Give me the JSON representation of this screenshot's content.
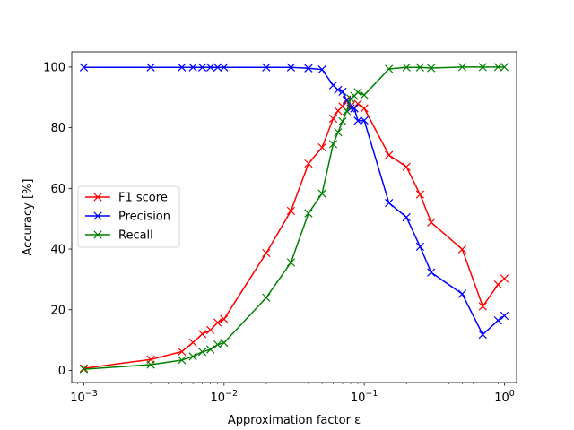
{
  "chart_data": {
    "type": "line",
    "xscale": "log",
    "xlabel": "Approximation factor ε",
    "ylabel": "Accuracy [%]",
    "xlim": [
      0.00082,
      1.22
    ],
    "ylim": [
      -4,
      105
    ],
    "xticks": [
      {
        "value": 0.001,
        "base": "10",
        "exp": "−3"
      },
      {
        "value": 0.01,
        "base": "10",
        "exp": "−2"
      },
      {
        "value": 0.1,
        "base": "10",
        "exp": "−1"
      },
      {
        "value": 1,
        "base": "10",
        "exp": "0"
      }
    ],
    "yticks": [
      {
        "value": 0,
        "label": "0"
      },
      {
        "value": 20,
        "label": "20"
      },
      {
        "value": 40,
        "label": "40"
      },
      {
        "value": 60,
        "label": "60"
      },
      {
        "value": 80,
        "label": "80"
      },
      {
        "value": 100,
        "label": "100"
      }
    ],
    "legend": "center-left",
    "grid": false,
    "marker": "x",
    "series": [
      {
        "name": "F1 score",
        "color": "#ff0000",
        "x": [
          0.001,
          0.003,
          0.005,
          0.006,
          0.007,
          0.008,
          0.009,
          0.01,
          0.02,
          0.03,
          0.04,
          0.05,
          0.06,
          0.065,
          0.07,
          0.075,
          0.08,
          0.085,
          0.09,
          0.1,
          0.15,
          0.2,
          0.25,
          0.3,
          0.5,
          0.7,
          0.9,
          1.0
        ],
        "values": [
          0.7,
          3.6,
          6.2,
          9.2,
          12.0,
          13.3,
          15.8,
          16.9,
          38.7,
          52.6,
          68.2,
          73.5,
          83.0,
          85.6,
          87.0,
          89.3,
          87.2,
          86.4,
          87.9,
          86.4,
          71.0,
          67.1,
          58.0,
          48.8,
          39.9,
          21.1,
          28.3,
          30.3
        ]
      },
      {
        "name": "Precision",
        "color": "#0000ff",
        "x": [
          0.001,
          0.003,
          0.005,
          0.006,
          0.007,
          0.008,
          0.009,
          0.01,
          0.02,
          0.03,
          0.04,
          0.05,
          0.06,
          0.065,
          0.07,
          0.075,
          0.08,
          0.085,
          0.09,
          0.1,
          0.15,
          0.2,
          0.25,
          0.3,
          0.5,
          0.7,
          0.9,
          1.0
        ],
        "values": [
          99.9,
          99.9,
          99.9,
          99.9,
          99.9,
          99.9,
          99.9,
          99.9,
          99.9,
          99.9,
          99.6,
          99.2,
          94.0,
          92.5,
          91.9,
          89.0,
          86.4,
          86.4,
          82.3,
          82.4,
          55.2,
          50.5,
          40.8,
          32.3,
          25.2,
          11.8,
          16.5,
          18.0
        ]
      },
      {
        "name": "Recall",
        "color": "#008000",
        "x": [
          0.001,
          0.003,
          0.005,
          0.006,
          0.007,
          0.008,
          0.009,
          0.01,
          0.02,
          0.03,
          0.04,
          0.05,
          0.06,
          0.065,
          0.07,
          0.075,
          0.08,
          0.085,
          0.09,
          0.1,
          0.15,
          0.2,
          0.25,
          0.3,
          0.5,
          0.7,
          0.9,
          1.0
        ],
        "values": [
          0.4,
          1.9,
          3.4,
          4.6,
          6.1,
          6.9,
          8.5,
          9.1,
          24.0,
          35.6,
          51.8,
          58.3,
          74.6,
          78.5,
          82.1,
          85.5,
          89.6,
          90.5,
          91.7,
          90.8,
          99.4,
          99.9,
          99.9,
          99.7,
          100.0,
          100.0,
          100.0,
          100.0
        ]
      }
    ]
  }
}
